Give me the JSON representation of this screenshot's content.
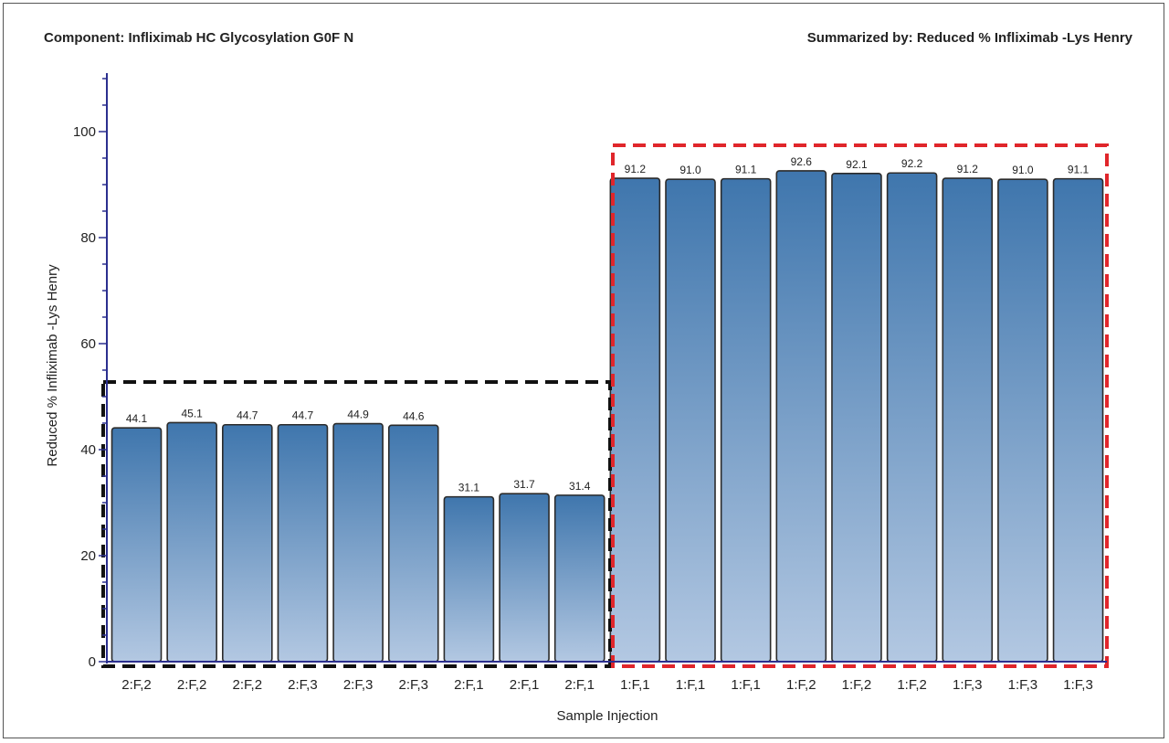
{
  "header": {
    "left": "Component: Infliximab HC Glycosylation G0F N",
    "right": "Summarized by: Reduced % Infliximab -Lys Henry"
  },
  "chart_data": {
    "type": "bar",
    "title": "",
    "xlabel": "Sample Injection",
    "ylabel": "Reduced % Infliximab -Lys Henry",
    "ylim": [
      0,
      110
    ],
    "yticks": [
      0,
      20,
      40,
      60,
      80,
      100
    ],
    "grid": false,
    "categories": [
      "2:F,2",
      "2:F,2",
      "2:F,2",
      "2:F,3",
      "2:F,3",
      "2:F,3",
      "2:F,1",
      "2:F,1",
      "2:F,1",
      "1:F,1",
      "1:F,1",
      "1:F,1",
      "1:F,2",
      "1:F,2",
      "1:F,2",
      "1:F,3",
      "1:F,3",
      "1:F,3"
    ],
    "values": [
      44.1,
      45.1,
      44.7,
      44.7,
      44.9,
      44.6,
      31.1,
      31.7,
      31.4,
      91.2,
      91.0,
      91.1,
      92.6,
      92.1,
      92.2,
      91.2,
      91.0,
      91.1
    ],
    "value_labels": [
      "44.1",
      "45.1",
      "44.7",
      "44.7",
      "44.9",
      "44.6",
      "31.1",
      "31.7",
      "31.4",
      "91.2",
      "91.0",
      "91.1",
      "92.6",
      "92.1",
      "92.2",
      "91.2",
      "91.0",
      "91.1"
    ],
    "bar_color_top": "#3f76ad",
    "bar_color_bottom": "#b3c8e2",
    "highlight_groups": [
      {
        "from_index": 0,
        "to_index": 8,
        "color": "#111111",
        "style": "dashed"
      },
      {
        "from_index": 9,
        "to_index": 17,
        "color": "#e0262b",
        "style": "dashed"
      }
    ]
  }
}
